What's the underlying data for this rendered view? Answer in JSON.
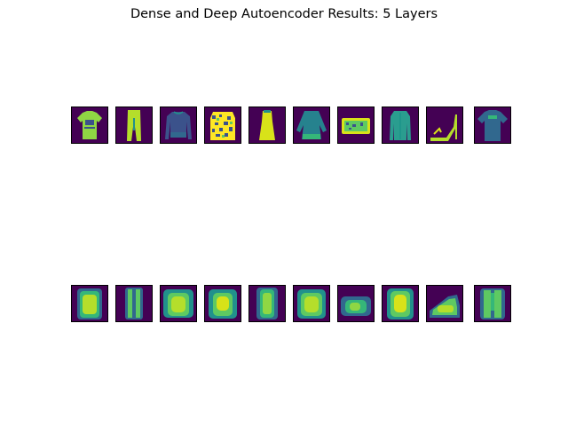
{
  "figure": {
    "title": "Dense and Deep Autoencoder Results: 5 Layers"
  },
  "original_images": [
    {
      "item": "t-shirt-bright",
      "icon": "tshirt-icon"
    },
    {
      "item": "trousers",
      "icon": "trousers-icon"
    },
    {
      "item": "pullover",
      "icon": "pullover-icon"
    },
    {
      "item": "patterned-shirt",
      "icon": "shirt-icon"
    },
    {
      "item": "dress",
      "icon": "dress-icon"
    },
    {
      "item": "top",
      "icon": "top-icon"
    },
    {
      "item": "bag",
      "icon": "bag-icon"
    },
    {
      "item": "coat",
      "icon": "coat-icon"
    },
    {
      "item": "sandal",
      "icon": "sandal-icon"
    },
    {
      "item": "t-shirt-dark",
      "icon": "tshirt-icon"
    }
  ],
  "reconstructed_images": [
    {
      "item": "t-shirt-recon"
    },
    {
      "item": "trousers-recon"
    },
    {
      "item": "pullover-recon"
    },
    {
      "item": "shirt-recon"
    },
    {
      "item": "dress-recon"
    },
    {
      "item": "top-recon"
    },
    {
      "item": "bag-recon"
    },
    {
      "item": "coat-recon"
    },
    {
      "item": "sandal-recon"
    },
    {
      "item": "t-shirt-dark-recon"
    }
  ],
  "colors": {
    "background_dark": "#440154",
    "low": "#31688e",
    "mid": "#21918c",
    "high": "#5ec962",
    "peak": "#fde725"
  }
}
